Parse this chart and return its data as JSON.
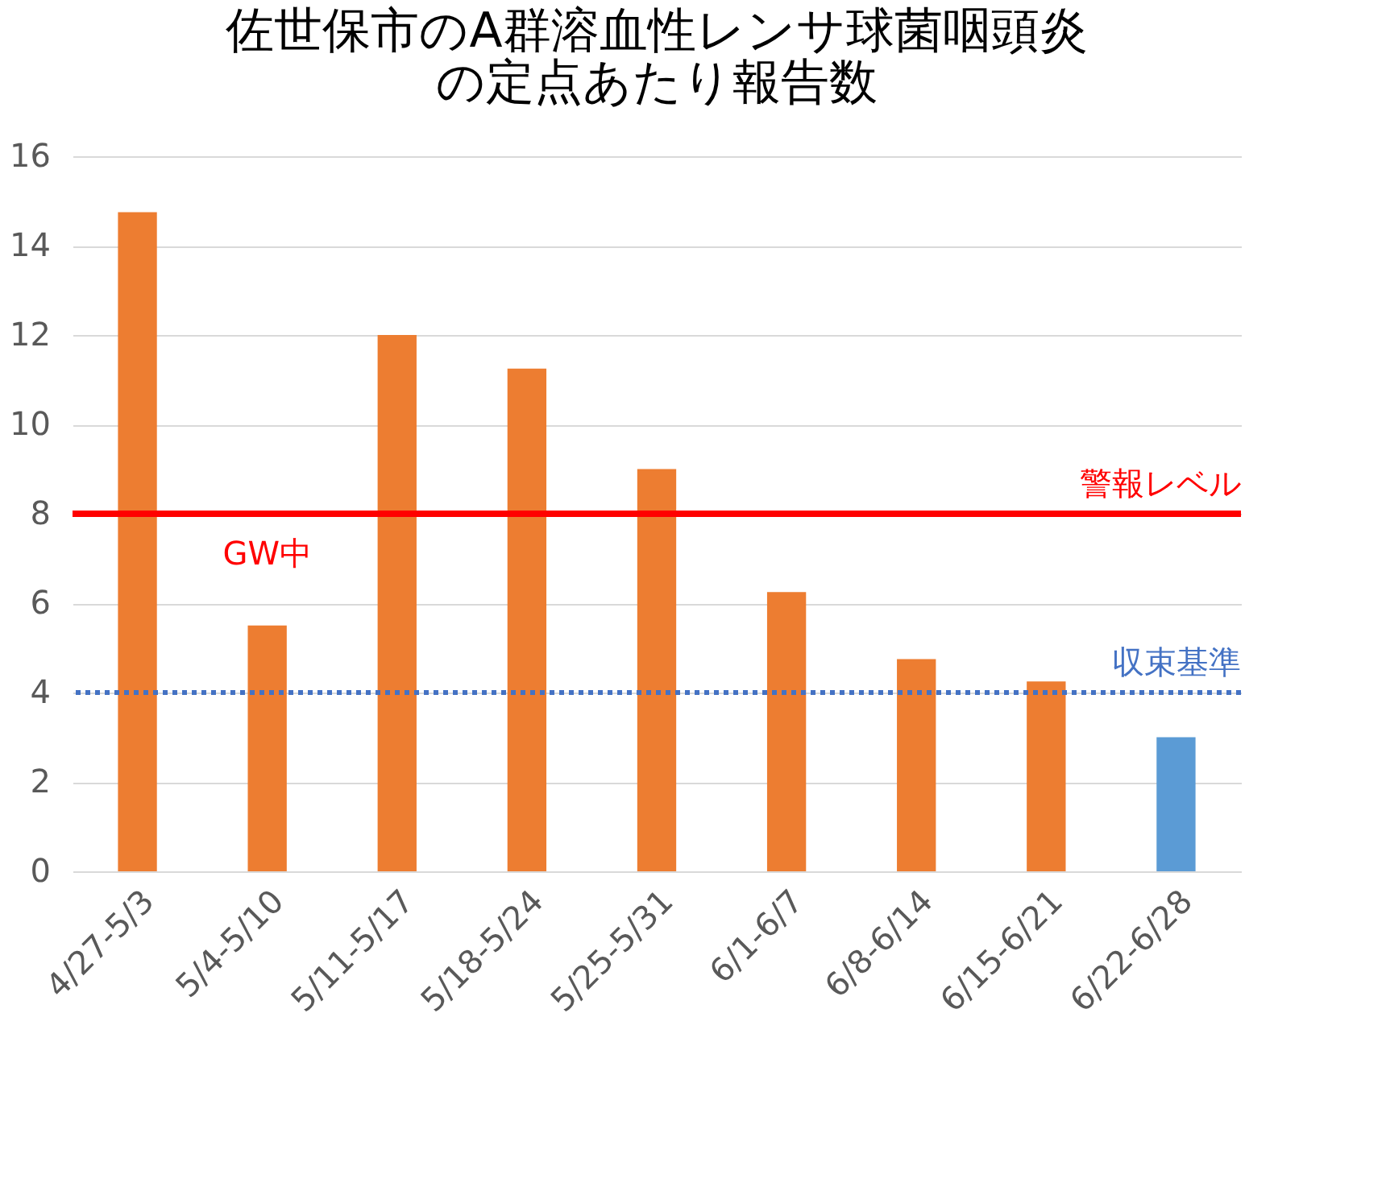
{
  "chart_data": {
    "type": "bar",
    "title": "佐世保市のA群溶血性レンサ球菌咽頭炎の定点あたり報告数",
    "categories": [
      "4/27-5/3",
      "5/4-5/10",
      "5/11-5/17",
      "5/18-5/24",
      "5/25-5/31",
      "6/1-6/7",
      "6/8-6/14",
      "6/15-6/21",
      "6/22-6/28"
    ],
    "values": [
      14.75,
      5.5,
      12,
      11.25,
      9,
      6.25,
      4.75,
      4.25,
      3
    ],
    "colors": [
      "#ed7d31",
      "#ed7d31",
      "#ed7d31",
      "#ed7d31",
      "#ed7d31",
      "#ed7d31",
      "#ed7d31",
      "#ed7d31",
      "#5b9bd5"
    ],
    "ylim": [
      0,
      16
    ],
    "yticks": [
      0,
      2,
      4,
      6,
      8,
      10,
      12,
      14,
      16
    ],
    "grid": "y",
    "ref_lines": [
      {
        "axis": "y",
        "value": 8,
        "label": "警報レベル",
        "color": "#ff0000",
        "line_style": "solid"
      },
      {
        "axis": "y",
        "value": 4,
        "label": "収束基準",
        "color": "#4472c4",
        "line_style": "dotted"
      }
    ],
    "annotations": [
      "GW中"
    ]
  }
}
